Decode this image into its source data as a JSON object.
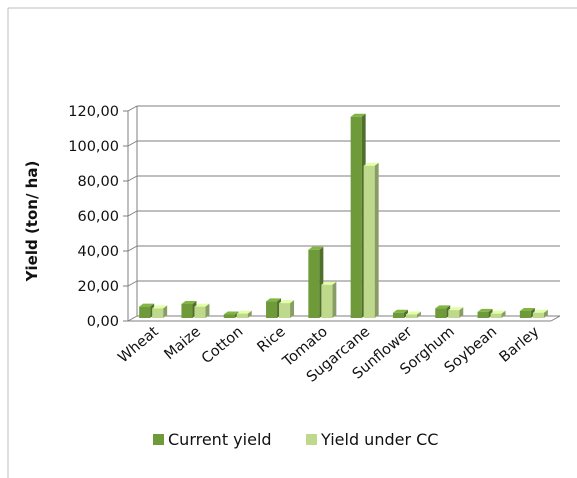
{
  "chart_data": {
    "type": "bar",
    "style": "3d-clustered-column",
    "categories": [
      "Wheat",
      "Maize",
      "Cotton",
      "Rice",
      "Tomato",
      "Sugarcane",
      "Sunflower",
      "Sorghum",
      "Soybean",
      "Barley"
    ],
    "series": [
      {
        "name": "Current yield",
        "color": "#6E9A3A",
        "values": [
          6.5,
          8.0,
          2.0,
          9.5,
          39.0,
          115.0,
          3.0,
          5.5,
          3.5,
          4.0
        ]
      },
      {
        "name": "Yield under CC",
        "color": "#BFD98C",
        "values": [
          5.5,
          6.5,
          2.5,
          8.5,
          19.0,
          87.0,
          2.0,
          4.5,
          2.5,
          3.0
        ]
      }
    ],
    "ylabel": "Yield (ton/ ha)",
    "xlabel": "",
    "ylim": [
      0,
      120
    ],
    "yticks": [
      "0,00",
      "20,00",
      "40,00",
      "60,00",
      "80,00",
      "100,00",
      "120,00"
    ],
    "grid": true,
    "legend": "bottom"
  }
}
